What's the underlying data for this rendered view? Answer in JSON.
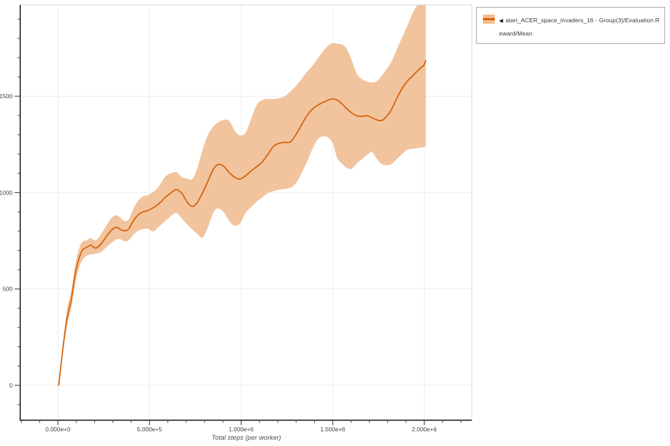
{
  "page": {
    "background": "#ffffff"
  },
  "legend": {
    "collapse_icon": "◀",
    "label": "atari_ACER_space_invaders_16 - Group(3)/Evaluation Reward/Mean",
    "swatch_band_color": "#f4bb8d",
    "swatch_line_color": "#d5620b",
    "border_color": "#a9a9a9"
  },
  "chart_data": {
    "type": "line",
    "title": "",
    "xlabel": "Total steps (per worker)",
    "ylabel": "",
    "xlim": [
      -202000,
      2259000
    ],
    "ylim": [
      -181,
      1974
    ],
    "grid": true,
    "legend_position": "top-right",
    "x_ticks": {
      "values": [
        0,
        500000,
        1000000,
        1500000,
        2000000
      ],
      "labels": [
        "0.000e+0",
        "5.000e+5",
        "1.000e+6",
        "1.500e+6",
        "2.000e+6"
      ],
      "minor_step": 100000
    },
    "y_ticks": {
      "values": [
        0,
        500,
        1000,
        1500
      ],
      "labels": [
        "0",
        "500",
        "1000",
        "1500"
      ],
      "minor_step": 100
    },
    "colors": {
      "grid": "#ebebeb",
      "spine_major": "#4a4a4a",
      "spine_minor": "#d9d9d9",
      "tick": "#4a4a4a",
      "tick_label": "#3f3f3f"
    },
    "series": [
      {
        "name": "atari_ACER_space_invaders_16 - Group(3)/Evaluation Reward/Mean",
        "line_color": "#d5620b",
        "band_color": "#f2c49d",
        "x": [
          4000,
          27000,
          50000,
          72000,
          95000,
          114000,
          133000,
          156000,
          179000,
          206000,
          232000,
          259000,
          290000,
          316000,
          339000,
          362000,
          385000,
          411000,
          438000,
          465000,
          491000,
          522000,
          552000,
          587000,
          621000,
          648000,
          678000,
          705000,
          732000,
          758000,
          789000,
          819000,
          850000,
          876000,
          903000,
          933000,
          964000,
          994000,
          1025000,
          1055000,
          1086000,
          1116000,
          1147000,
          1177000,
          1208000,
          1238000,
          1269000,
          1299000,
          1330000,
          1360000,
          1391000,
          1421000,
          1452000,
          1475000,
          1501000,
          1524000,
          1551000,
          1577000,
          1604000,
          1630000,
          1657000,
          1688000,
          1714000,
          1741000,
          1767000,
          1794000,
          1821000,
          1848000,
          1878000,
          1905000,
          1931000,
          1958000,
          1981000,
          1996000,
          2008000
        ],
        "mean": [
          0,
          190,
          350,
          440,
          580,
          655,
          700,
          716,
          727,
          712,
          730,
          765,
          803,
          820,
          810,
          802,
          810,
          852,
          885,
          900,
          907,
          922,
          943,
          976,
          1001,
          1016,
          994,
          951,
          928,
          945,
          998,
          1060,
          1124,
          1146,
          1138,
          1106,
          1080,
          1070,
          1088,
          1113,
          1135,
          1160,
          1200,
          1240,
          1256,
          1261,
          1263,
          1301,
          1352,
          1400,
          1435,
          1455,
          1470,
          1480,
          1486,
          1480,
          1460,
          1435,
          1413,
          1399,
          1395,
          1399,
          1388,
          1377,
          1374,
          1395,
          1432,
          1486,
          1540,
          1576,
          1601,
          1627,
          1648,
          1660,
          1685
        ],
        "lower": [
          0,
          170,
          310,
          395,
          530,
          605,
          650,
          672,
          679,
          683,
          690,
          712,
          737,
          755,
          759,
          748,
          752,
          781,
          802,
          810,
          813,
          799,
          824,
          853,
          882,
          893,
          864,
          835,
          810,
          788,
          766,
          820,
          900,
          918,
          900,
          856,
          828,
          842,
          896,
          925,
          954,
          976,
          998,
          1008,
          1016,
          1019,
          1026,
          1048,
          1102,
          1160,
          1230,
          1280,
          1292,
          1285,
          1255,
          1180,
          1150,
          1128,
          1124,
          1150,
          1172,
          1195,
          1210,
          1175,
          1148,
          1142,
          1148,
          1172,
          1200,
          1222,
          1226,
          1230,
          1233,
          1237,
          1240
        ],
        "upper": [
          0,
          215,
          395,
          490,
          630,
          705,
          745,
          752,
          764,
          752,
          781,
          820,
          867,
          882,
          871,
          853,
          860,
          914,
          958,
          980,
          987,
          1005,
          1034,
          1084,
          1102,
          1106,
          1080,
          1073,
          1070,
          1120,
          1220,
          1300,
          1344,
          1366,
          1377,
          1374,
          1323,
          1297,
          1312,
          1384,
          1457,
          1480,
          1486,
          1486,
          1490,
          1500,
          1525,
          1554,
          1590,
          1627,
          1660,
          1700,
          1740,
          1762,
          1775,
          1773,
          1768,
          1745,
          1685,
          1620,
          1590,
          1576,
          1572,
          1578,
          1605,
          1640,
          1680,
          1740,
          1805,
          1860,
          1920,
          1968,
          1985,
          1992,
          1995
        ]
      }
    ]
  }
}
